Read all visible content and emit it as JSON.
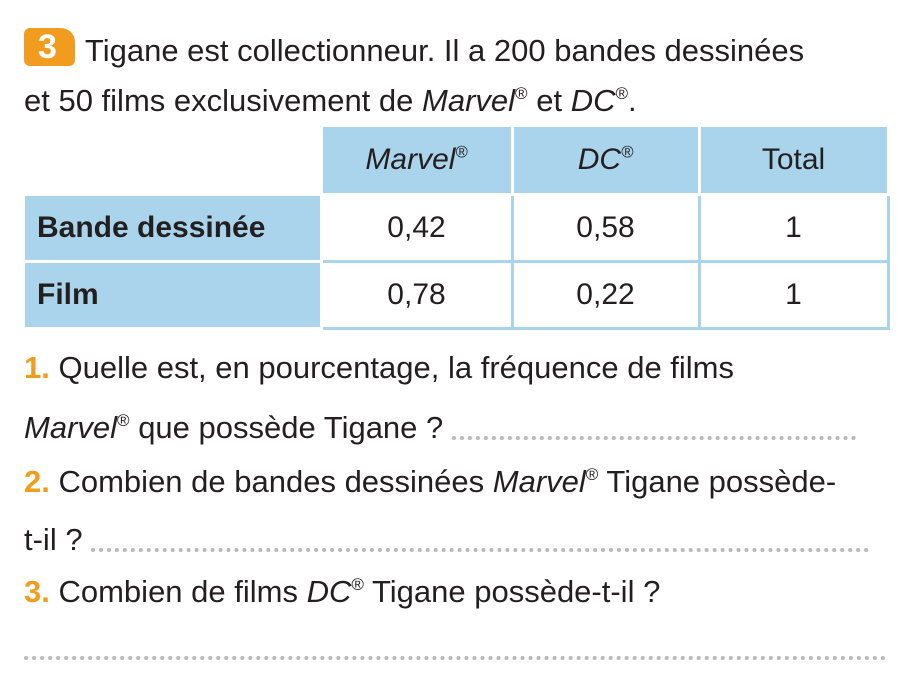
{
  "exercise": {
    "number": "3",
    "intro_line1": "Tigane est collectionneur. Il a 200 bandes dessinées",
    "intro_line2_a": "et 50 films exclusivement de ",
    "brand_marvel": "Marvel",
    "brand_dc": "DC",
    "registered": "®",
    "intro_line2_b": " et ",
    "intro_line2_c": "."
  },
  "table": {
    "headers": [
      "Marvel",
      "DC",
      "Total"
    ],
    "rows": [
      {
        "label": "Bande dessinée",
        "values": [
          "0,42",
          "0,58",
          "1"
        ]
      },
      {
        "label": "Film",
        "values": [
          "0,78",
          "0,22",
          "1"
        ]
      }
    ]
  },
  "questions": [
    {
      "number": "1.",
      "text_a": "Quelle est, en pourcentage, la fréquence de films",
      "text_b": " que possède Tigane ?"
    },
    {
      "number": "2.",
      "text_a": "Combien de bandes dessinées ",
      "text_b": " Tigane possède-",
      "text_c": "t-il ?"
    },
    {
      "number": "3.",
      "text_a": "Combien de films ",
      "text_b": " Tigane possède-t-il ?"
    }
  ],
  "colors": {
    "accent_orange": "#f29c1f",
    "table_blue": "#a9d4eb"
  }
}
